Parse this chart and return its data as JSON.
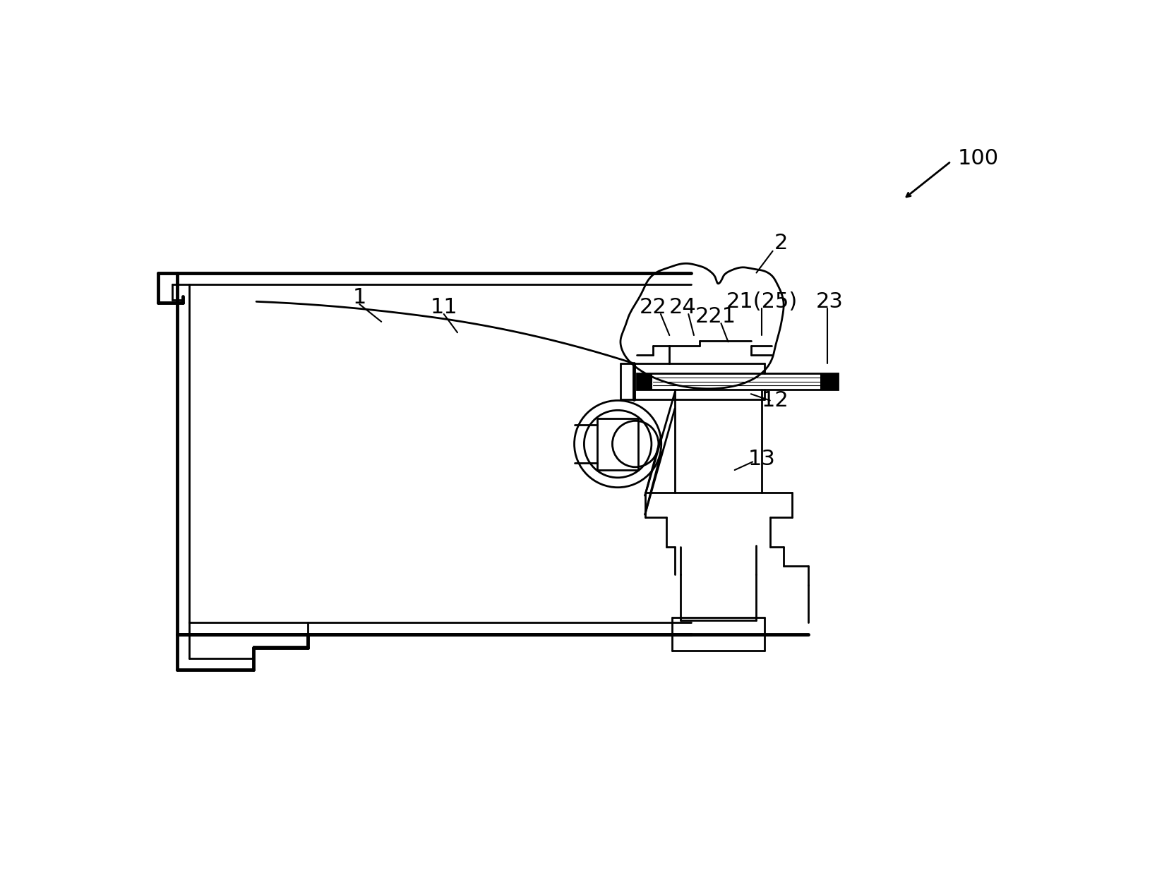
{
  "bg_color": "#ffffff",
  "lc": "#000000",
  "lw": 2.0,
  "tlw": 3.5,
  "label_fs": 22,
  "figsize": [
    16.4,
    12.64
  ],
  "dpi": 100
}
